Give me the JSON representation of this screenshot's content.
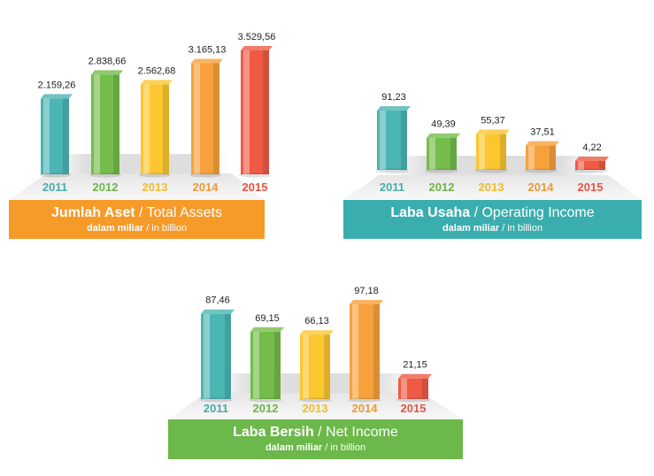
{
  "palette": {
    "teal": "#4bb5b3",
    "green": "#74bd4a",
    "yellow": "#fbc62f",
    "orange": "#f7a13c",
    "red": "#ef5a45",
    "banner_orange": "#f69a28",
    "banner_teal": "#3aaeae",
    "banner_green": "#6cb84a"
  },
  "chart_data": [
    {
      "type": "bar",
      "categories": [
        "2011",
        "2012",
        "2013",
        "2014",
        "2015"
      ],
      "values": [
        2159.26,
        2838.66,
        2562.68,
        3165.13,
        3529.56
      ],
      "value_labels": [
        "2.159,26",
        "2.838,66",
        "2.562,68",
        "3.165,13",
        "3.529,56"
      ],
      "title_bold": "Jumlah Aset",
      "title_sep": " / ",
      "title_rest": "Total Assets",
      "subtitle_bold": "dalam miliar",
      "subtitle_sep": " / ",
      "subtitle_rest": "in billion",
      "banner_color": "#f69a28",
      "bar_colors": [
        "#4bb5b3",
        "#74bd4a",
        "#fbc62f",
        "#f7a13c",
        "#ef5a45"
      ]
    },
    {
      "type": "bar",
      "categories": [
        "2011",
        "2012",
        "2013",
        "2014",
        "2015"
      ],
      "values": [
        91.23,
        49.39,
        55.37,
        37.51,
        4.22
      ],
      "value_labels": [
        "91,23",
        "49,39",
        "55,37",
        "37,51",
        "4,22"
      ],
      "title_bold": "Laba Usaha",
      "title_sep": " / ",
      "title_rest": "Operating Income",
      "subtitle_bold": "dalam miliar",
      "subtitle_sep": " / ",
      "subtitle_rest": "in billion",
      "banner_color": "#3aaeae",
      "bar_colors": [
        "#4bb5b3",
        "#74bd4a",
        "#fbc62f",
        "#f7a13c",
        "#ef5a45"
      ]
    },
    {
      "type": "bar",
      "categories": [
        "2011",
        "2012",
        "2013",
        "2014",
        "2015"
      ],
      "values": [
        87.46,
        69.15,
        66.13,
        97.18,
        21.15
      ],
      "value_labels": [
        "87,46",
        "69,15",
        "66,13",
        "97,18",
        "21,15"
      ],
      "title_bold": "Laba Bersih",
      "title_sep": " / ",
      "title_rest": "Net Income",
      "subtitle_bold": "dalam miliar",
      "subtitle_sep": " / ",
      "subtitle_rest": "in billion",
      "banner_color": "#6cb84a",
      "bar_colors": [
        "#4bb5b3",
        "#74bd4a",
        "#fbc62f",
        "#f7a13c",
        "#ef5a45"
      ]
    }
  ]
}
